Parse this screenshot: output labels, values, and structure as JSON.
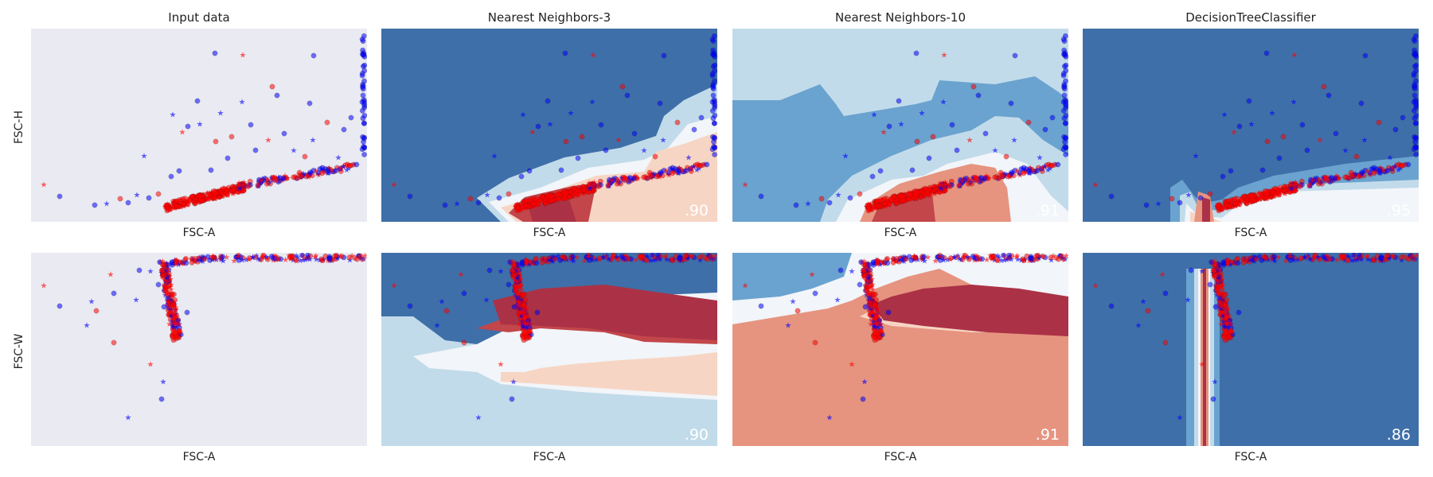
{
  "figure": {
    "row_ylabels": [
      "FSC-H",
      "FSC-W"
    ],
    "xlabel": "FSC-A",
    "column_titles": [
      "Input data",
      "Nearest Neighbors-3",
      "Nearest Neighbors-10",
      "DecisionTreeClassifier"
    ]
  },
  "chart_data": [
    {
      "type": "scatter",
      "title": "Input data",
      "xlabel": "FSC-A",
      "ylabel": "FSC-H",
      "row": 0,
      "col": 0,
      "score": "",
      "background": "#eaeaf2"
    },
    {
      "type": "scatter",
      "title": "Nearest Neighbors-3",
      "xlabel": "FSC-A",
      "ylabel": "",
      "row": 0,
      "col": 1,
      "score": ".90",
      "background": "contour"
    },
    {
      "type": "scatter",
      "title": "Nearest Neighbors-10",
      "xlabel": "FSC-A",
      "ylabel": "",
      "row": 0,
      "col": 2,
      "score": ".91",
      "background": "contour"
    },
    {
      "type": "scatter",
      "title": "DecisionTreeClassifier",
      "xlabel": "FSC-A",
      "ylabel": "",
      "row": 0,
      "col": 3,
      "score": ".95",
      "background": "contour"
    },
    {
      "type": "scatter",
      "title": "",
      "xlabel": "FSC-A",
      "ylabel": "FSC-W",
      "row": 1,
      "col": 0,
      "score": "",
      "background": "#eaeaf2"
    },
    {
      "type": "scatter",
      "title": "",
      "xlabel": "FSC-A",
      "ylabel": "",
      "row": 1,
      "col": 1,
      "score": ".90",
      "background": "contour"
    },
    {
      "type": "scatter",
      "title": "",
      "xlabel": "FSC-A",
      "ylabel": "",
      "row": 1,
      "col": 2,
      "score": ".91",
      "background": "contour"
    },
    {
      "type": "scatter",
      "title": "",
      "xlabel": "FSC-A",
      "ylabel": "",
      "row": 1,
      "col": 3,
      "score": ".86",
      "background": "contour"
    }
  ],
  "colors": {
    "class_blue": "#0000ff",
    "class_red": "#ff0000",
    "panel_bg": "#eaeaf2",
    "cmap_rdbu": [
      "#3f6fa8",
      "#6aa3cf",
      "#c2dbea",
      "#f2f5f9",
      "#f7d5c4",
      "#e69480",
      "#c2464a",
      "#ab3246"
    ]
  }
}
